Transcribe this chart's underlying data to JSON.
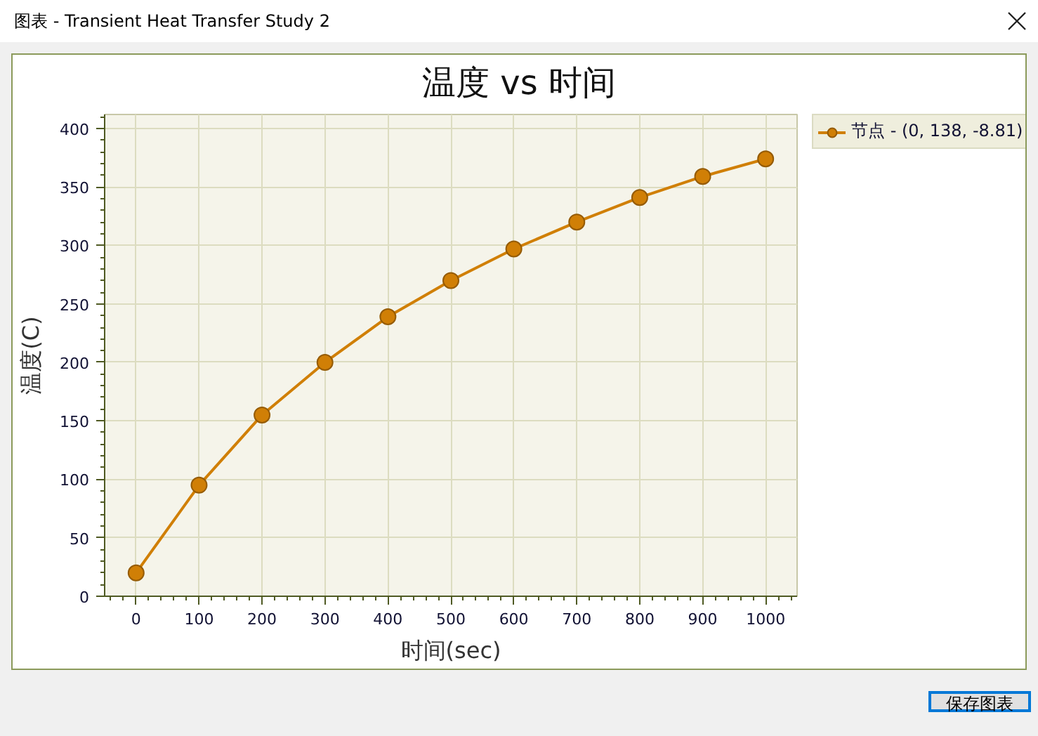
{
  "chart_data": {
    "type": "line",
    "title": "温度 vs 时间",
    "xlabel": "时间(sec)",
    "ylabel": "温度(C)",
    "x": [
      0,
      100,
      200,
      300,
      400,
      500,
      600,
      700,
      800,
      900,
      1000
    ],
    "series": [
      {
        "name": "节点 - (0, 138, -8.81)",
        "color": "#d07f06",
        "values": [
          20,
          95,
          155,
          200,
          239,
          270,
          297,
          320,
          341,
          359,
          374
        ]
      }
    ],
    "xlim": [
      -50,
      1050
    ],
    "ylim": [
      0,
      412
    ],
    "xticks": [
      0,
      100,
      200,
      300,
      400,
      500,
      600,
      700,
      800,
      900,
      1000
    ],
    "yticks": [
      0,
      50,
      100,
      150,
      200,
      250,
      300,
      350,
      400
    ],
    "grid": true,
    "legend": "top right",
    "marker": "circle",
    "line_style": "solid",
    "annotations": [
      "图表 - Transient Heat Transfer Study 2",
      "保存图表"
    ]
  }
}
